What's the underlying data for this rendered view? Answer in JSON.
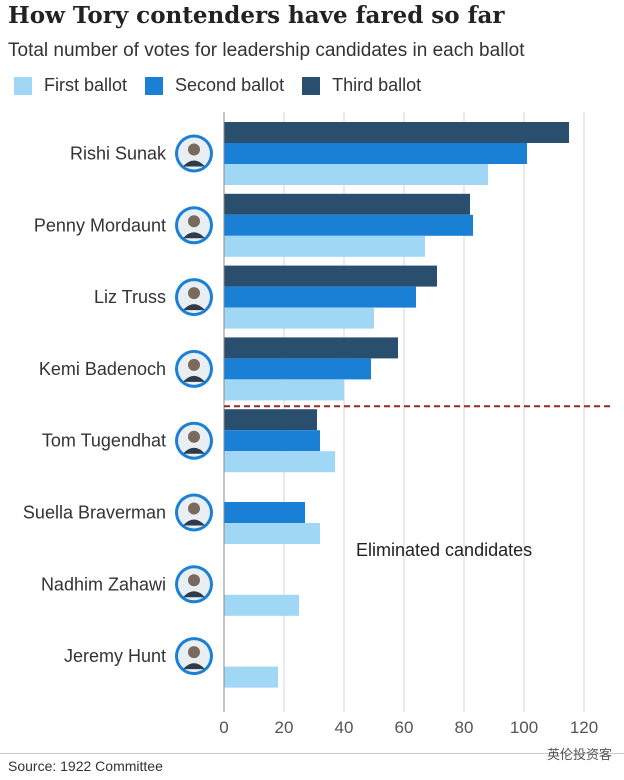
{
  "header": {
    "title": "How Tory contenders have fared so far",
    "subtitle": "Total number of votes for leadership candidates in each ballot"
  },
  "legend": {
    "items": [
      {
        "label": "First ballot",
        "color": "#9fd7f5"
      },
      {
        "label": "Second ballot",
        "color": "#1a80d6"
      },
      {
        "label": "Third ballot",
        "color": "#2a4f6e"
      }
    ]
  },
  "colors": {
    "cutoff_line": "#9a2626",
    "grid": "#d6d6d6",
    "axis_text": "#555555"
  },
  "annotation": "Eliminated candidates",
  "footer": {
    "source": "Source: 1922 Committee",
    "watermark": "英伦投资客"
  },
  "chart_data": {
    "type": "bar",
    "orientation": "horizontal",
    "categories": [
      "Rishi Sunak",
      "Penny Mordaunt",
      "Liz Truss",
      "Kemi Badenoch",
      "Tom Tugendhat",
      "Suella Braverman",
      "Nadhim Zahawi",
      "Jeremy Hunt"
    ],
    "series": [
      {
        "name": "Third ballot",
        "values": [
          115,
          82,
          71,
          58,
          31,
          null,
          null,
          null
        ]
      },
      {
        "name": "Second ballot",
        "values": [
          101,
          83,
          64,
          49,
          32,
          27,
          null,
          null
        ]
      },
      {
        "name": "First ballot",
        "values": [
          88,
          67,
          50,
          40,
          37,
          32,
          25,
          18
        ]
      }
    ],
    "xlim": [
      0,
      120
    ],
    "xticks": [
      0,
      20,
      40,
      60,
      80,
      100,
      120
    ],
    "xlabel": "",
    "ylabel": "",
    "grid": true,
    "legend_position": "top",
    "eliminated_after": "Kemi Badenoch",
    "candidate_icons": [
      "avatar-icon",
      "avatar-icon",
      "avatar-icon",
      "avatar-icon",
      "avatar-icon",
      "avatar-icon",
      "avatar-icon",
      "avatar-icon"
    ]
  }
}
